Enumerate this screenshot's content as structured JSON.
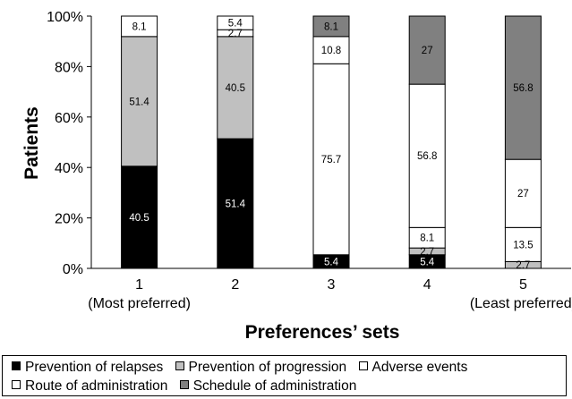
{
  "chart_data": {
    "type": "bar",
    "stacked": true,
    "ylabel": "Patients",
    "xlabel": "Preferences’ sets",
    "categories": [
      "1",
      "2",
      "3",
      "4",
      "5"
    ],
    "category_sublabels": [
      "(Most preferred)",
      "",
      "",
      "",
      "(Least preferred)"
    ],
    "ylim": [
      0,
      100
    ],
    "yticks": [
      "0%",
      "20%",
      "40%",
      "60%",
      "80%",
      "100%"
    ],
    "grid": false,
    "legend_position": "bottom",
    "series": [
      {
        "name": "Prevention of relapses",
        "color": "#000000",
        "label_color": "#ffffff",
        "values": [
          40.5,
          51.4,
          5.4,
          5.4,
          0
        ],
        "labels": [
          "40.5",
          "51.4",
          "5.4",
          "5.4",
          ""
        ]
      },
      {
        "name": "Prevention of progression",
        "color": "#c0c0c0",
        "label_color": "#000000",
        "values": [
          51.4,
          40.5,
          0,
          2.7,
          2.7
        ],
        "labels": [
          "51.4",
          "40.5",
          "",
          "2.7",
          "2.7"
        ]
      },
      {
        "name": "Adverse events",
        "color": "#ffffff",
        "label_color": "#000000",
        "values": [
          8.1,
          2.7,
          75.7,
          8.1,
          13.5
        ],
        "labels": [
          "8.1",
          "2.7",
          "75.7",
          "8.1",
          "13.5"
        ]
      },
      {
        "name": "Route of administration",
        "color": "#ffffff",
        "label_color": "#000000",
        "values": [
          0,
          5.4,
          10.8,
          56.8,
          27
        ],
        "labels": [
          "",
          "5.4",
          "10.8",
          "56.8",
          "27"
        ]
      },
      {
        "name": "Schedule of administration",
        "color": "#808080",
        "label_color": "#000000",
        "values": [
          0,
          0,
          8.1,
          27,
          56.8
        ],
        "labels": [
          "",
          "",
          "8.1",
          "27",
          "56.8"
        ]
      }
    ]
  }
}
